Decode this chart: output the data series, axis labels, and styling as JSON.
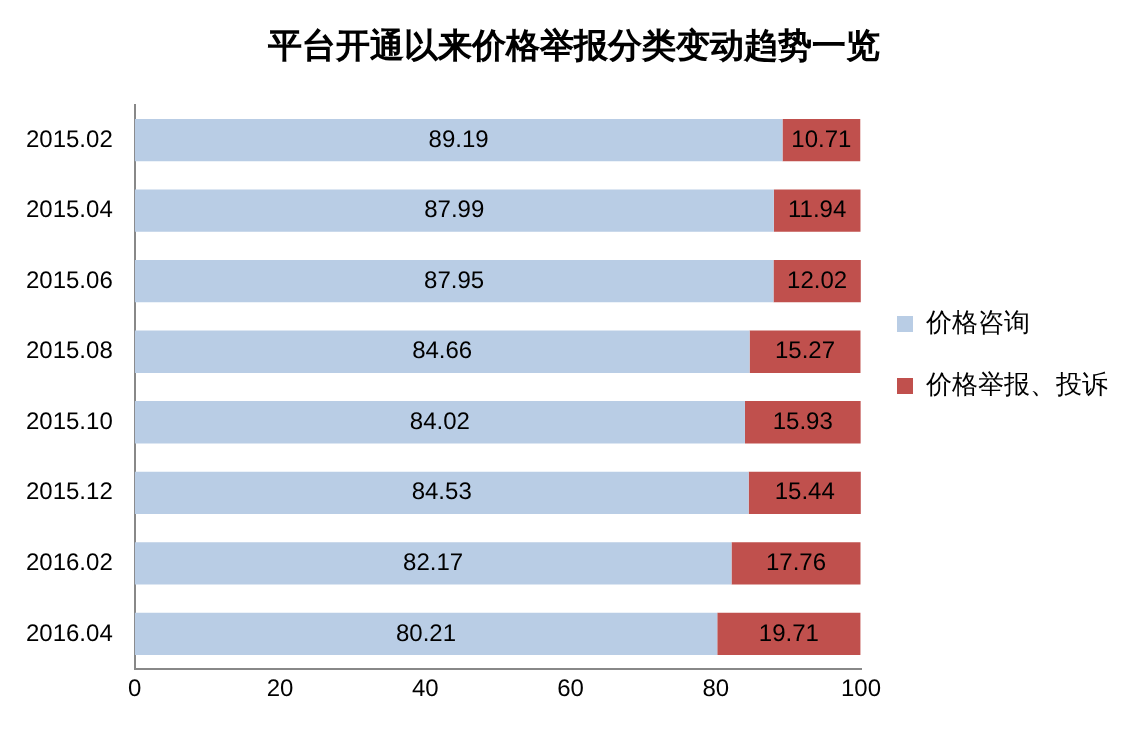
{
  "chart_data": {
    "type": "bar",
    "title": "平台开通以来价格举报分类变动趋势一览",
    "orientation": "horizontal",
    "stacked": true,
    "categories": [
      "2015.02",
      "2015.04",
      "2015.06",
      "2015.08",
      "2015.10",
      "2015.12",
      "2016.02",
      "2016.04"
    ],
    "series": [
      {
        "name": "价格咨询",
        "color": "#b9cde5",
        "values": [
          89.19,
          87.99,
          87.95,
          84.66,
          84.02,
          84.53,
          82.17,
          80.21
        ]
      },
      {
        "name": "价格举报、投诉",
        "color": "#c0504d",
        "values": [
          10.71,
          11.94,
          12.02,
          15.27,
          15.93,
          15.44,
          17.76,
          19.71
        ]
      }
    ],
    "xlim": [
      0,
      100
    ],
    "xticks": [
      0,
      20,
      40,
      60,
      80,
      100
    ],
    "grid": false,
    "legend": "right",
    "data_labels": true
  }
}
